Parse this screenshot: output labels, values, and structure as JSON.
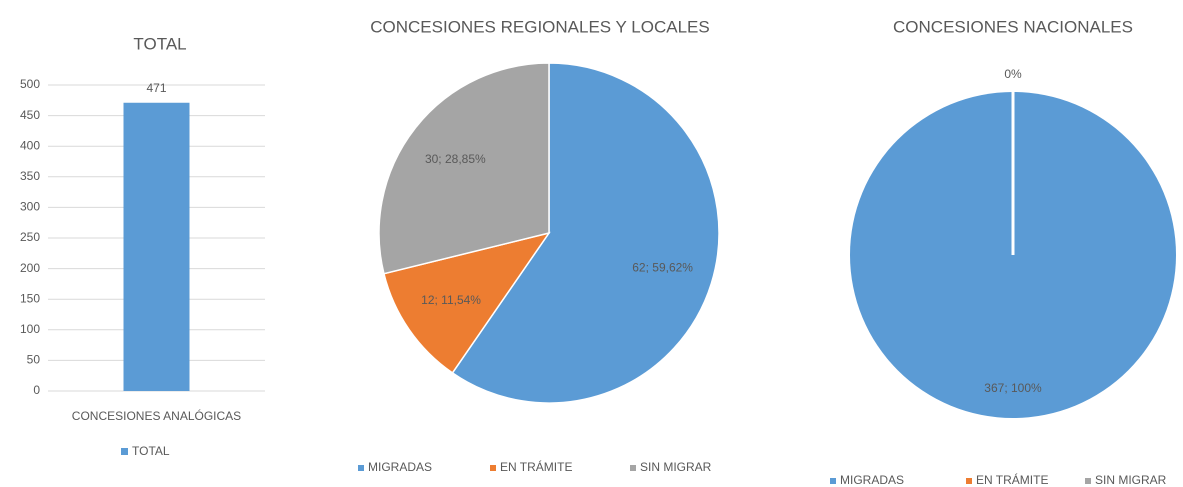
{
  "chart_data": [
    {
      "type": "bar",
      "title": "TOTAL",
      "categories": [
        "CONCESIONES ANALÓGICAS"
      ],
      "series": [
        {
          "name": "TOTAL",
          "color": "#5b9bd5",
          "values": [
            471
          ]
        }
      ],
      "ylim": [
        0,
        500
      ],
      "yticks": [
        0,
        50,
        100,
        150,
        200,
        250,
        300,
        350,
        400,
        450,
        500
      ],
      "grid": true
    },
    {
      "type": "pie",
      "title": "CONCESIONES REGIONALES Y LOCALES",
      "categories": [
        "MIGRADAS",
        "EN TRÁMITE",
        "SIN MIGRAR"
      ],
      "values": [
        62,
        12,
        30
      ],
      "value_labels": [
        "62; 59,62%",
        "12; 11,54%",
        "30; 28,85%"
      ],
      "colors": [
        "#5b9bd5",
        "#ed7d31",
        "#a5a5a5"
      ]
    },
    {
      "type": "pie",
      "title": "CONCESIONES NACIONALES",
      "categories": [
        "MIGRADAS",
        "EN TRÁMITE",
        "SIN MIGRAR"
      ],
      "values": [
        367,
        0,
        0
      ],
      "value_labels": [
        "367; 100%",
        "0%",
        null
      ],
      "colors": [
        "#5b9bd5",
        "#ed7d31",
        "#a5a5a5"
      ]
    }
  ]
}
